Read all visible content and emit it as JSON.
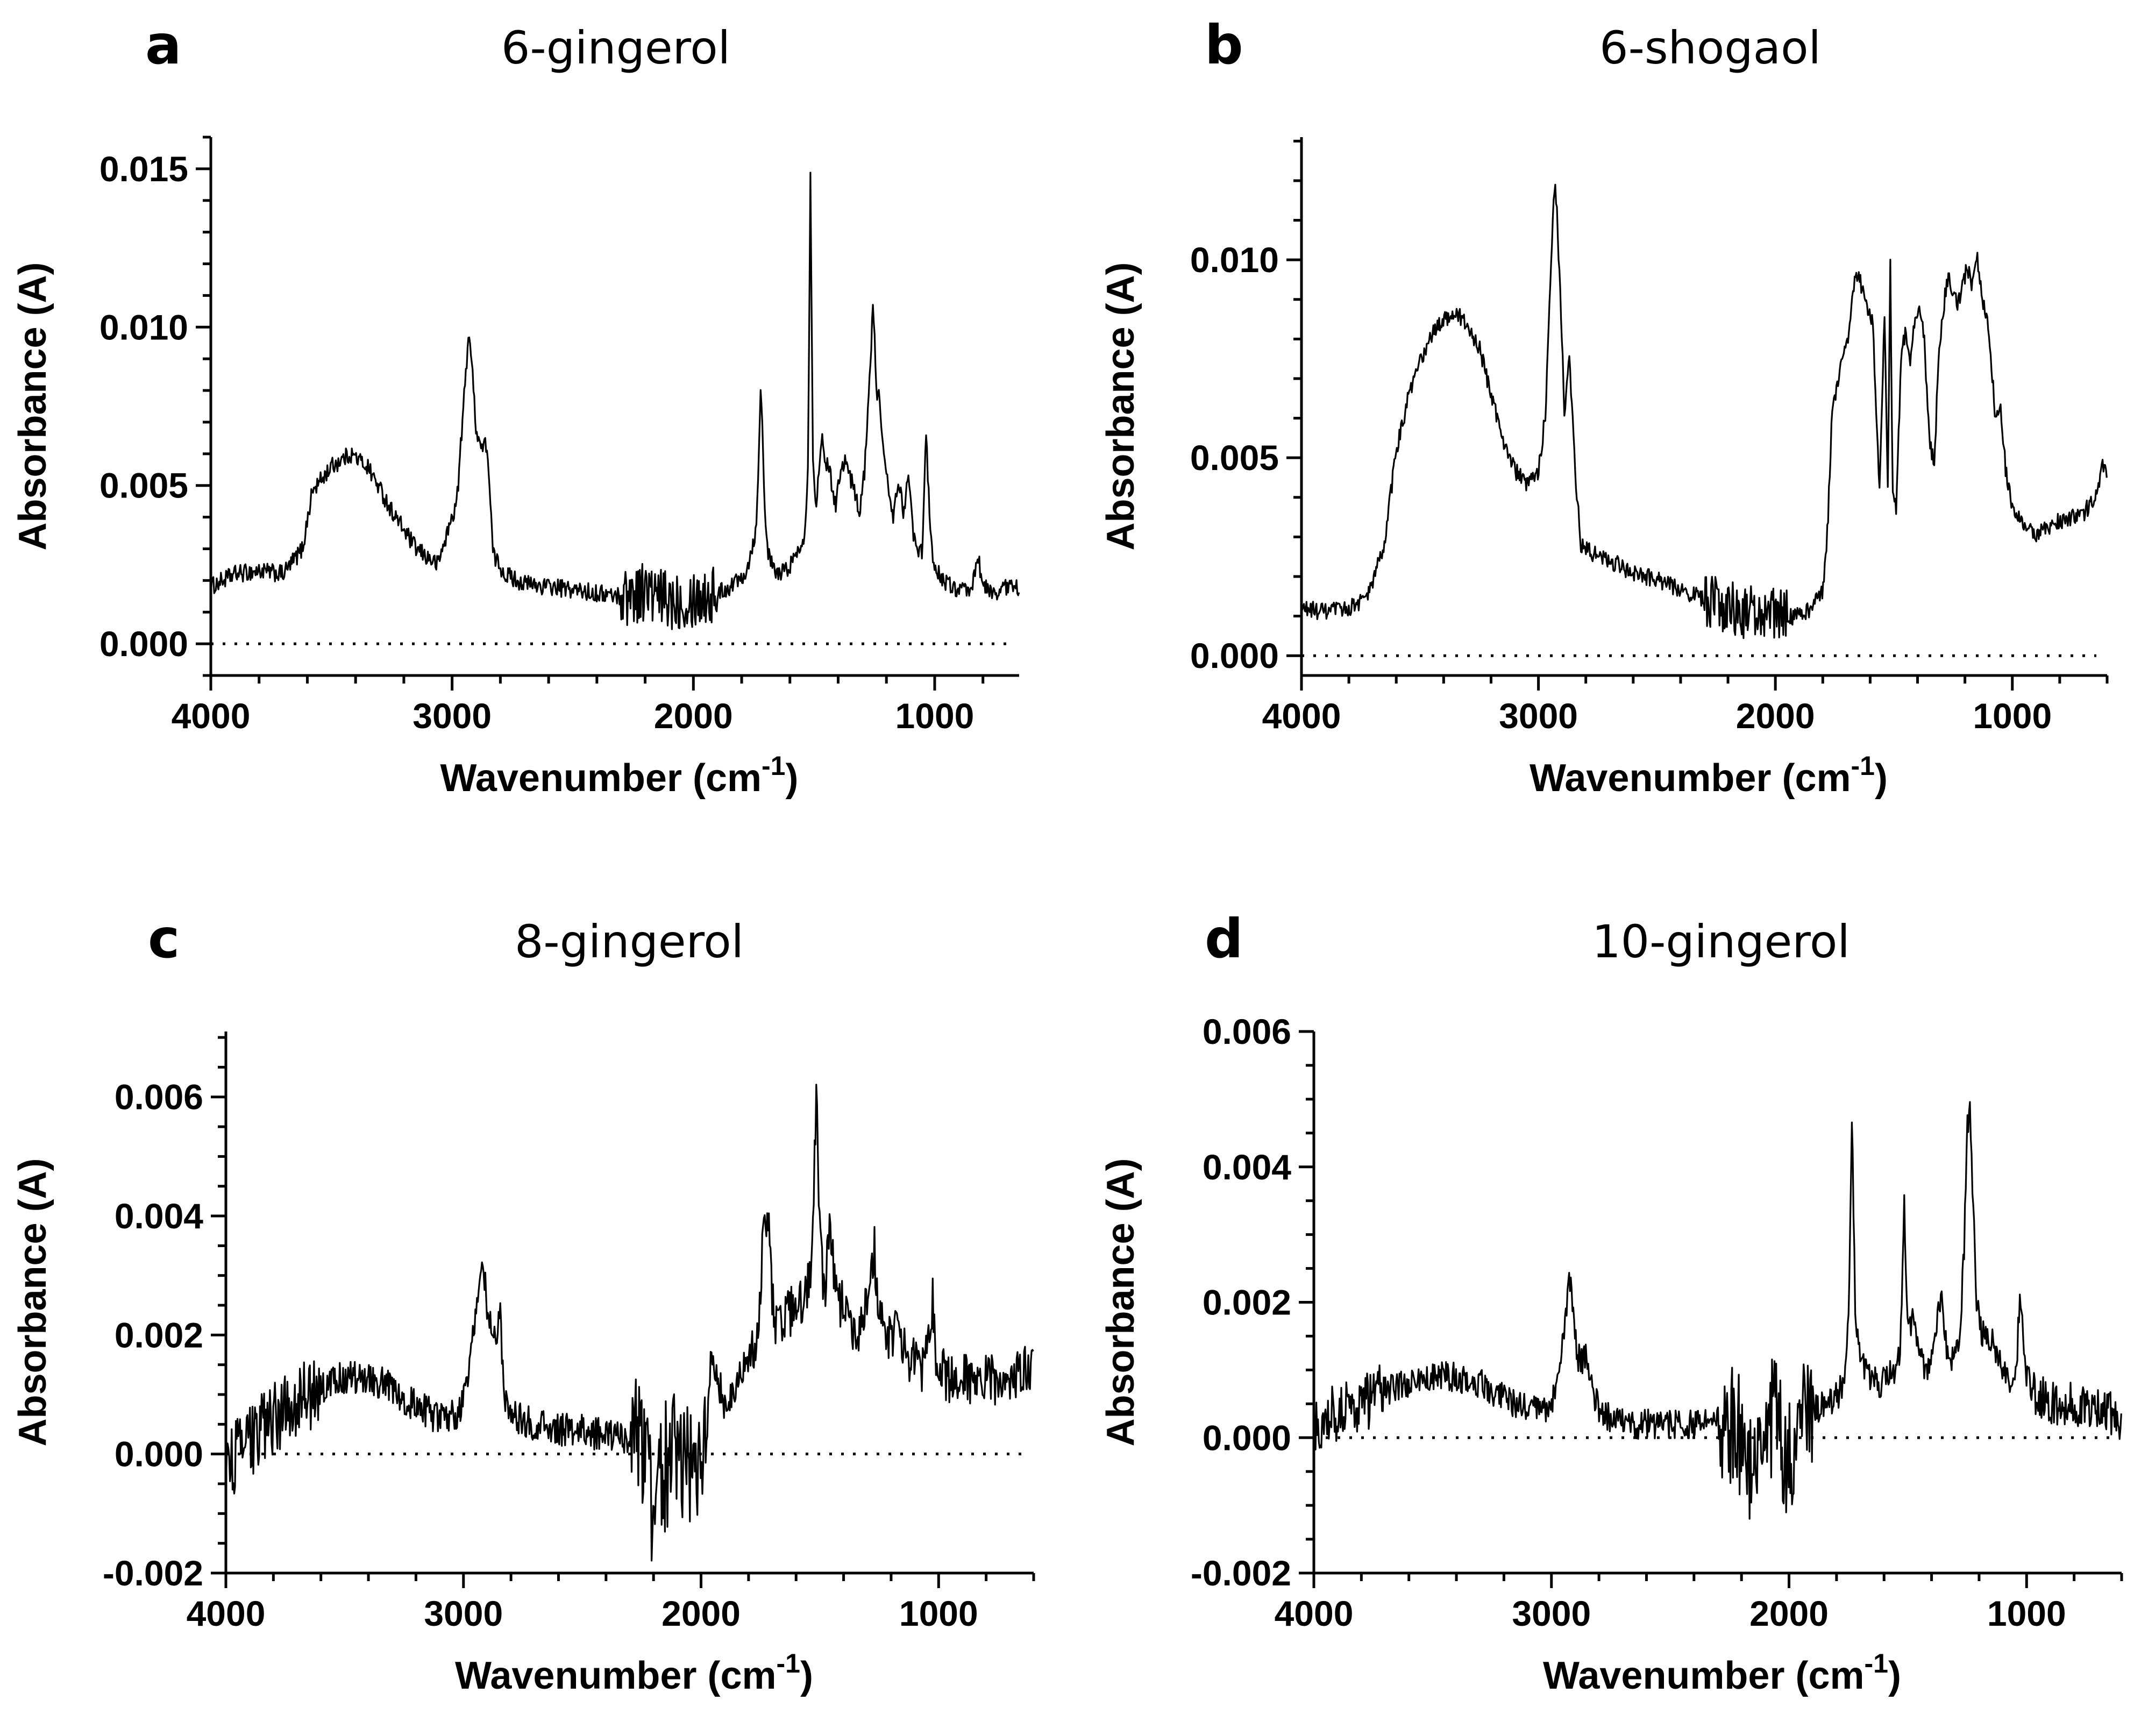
{
  "chart_data": [
    {
      "type": "line",
      "panel_label": "a",
      "title": "6-gingerol",
      "xlabel": "Wavenumber (cm",
      "xlabel_sup": "-1",
      "xlabel_end": ")",
      "ylabel": "Absorbance (A)",
      "xlim": [
        4000,
        650
      ],
      "ylim": [
        -0.001,
        0.016
      ],
      "xticks": [
        4000,
        3000,
        2000,
        1000
      ],
      "xtick_labels": [
        "4000",
        "3000",
        "2000",
        "1000"
      ],
      "yticks": [
        0.0,
        0.005,
        0.01,
        0.015
      ],
      "ytick_labels": [
        "0.000",
        "0.005",
        "0.010",
        "0.015"
      ],
      "y_minor_step": 0.001,
      "x_minor_step": 200,
      "baseline": "dotted line at 0",
      "noise": 0.00028,
      "noise_regions": [
        [
          2300,
          1900,
          3.5
        ]
      ],
      "series": [
        {
          "name": "6-gingerol",
          "x": [
            4000,
            3900,
            3800,
            3700,
            3620,
            3580,
            3500,
            3420,
            3350,
            3250,
            3150,
            3060,
            2980,
            2930,
            2900,
            2880,
            2855,
            2830,
            2780,
            2700,
            2600,
            2500,
            2400,
            2300,
            2250,
            2200,
            2150,
            2100,
            2000,
            1950,
            1900,
            1850,
            1780,
            1740,
            1720,
            1705,
            1690,
            1660,
            1620,
            1590,
            1560,
            1540,
            1525,
            1515,
            1505,
            1490,
            1470,
            1450,
            1430,
            1410,
            1390,
            1370,
            1340,
            1310,
            1290,
            1270,
            1255,
            1240,
            1230,
            1210,
            1190,
            1170,
            1150,
            1130,
            1110,
            1090,
            1070,
            1050,
            1035,
            1020,
            1000,
            950,
            900,
            850,
            820,
            800,
            760,
            700,
            650
          ],
          "y": [
            0.0018,
            0.0022,
            0.0023,
            0.0022,
            0.003,
            0.0048,
            0.0056,
            0.006,
            0.0056,
            0.0042,
            0.003,
            0.0025,
            0.0045,
            0.01,
            0.0068,
            0.0062,
            0.0063,
            0.0028,
            0.0022,
            0.0019,
            0.0018,
            0.0017,
            0.0016,
            0.0015,
            0.0016,
            0.0017,
            0.0014,
            0.0014,
            0.0015,
            0.0015,
            0.0016,
            0.0018,
            0.0023,
            0.0036,
            0.0082,
            0.0045,
            0.0028,
            0.0022,
            0.0023,
            0.0026,
            0.003,
            0.0035,
            0.0055,
            0.015,
            0.006,
            0.0042,
            0.0066,
            0.0058,
            0.0052,
            0.0044,
            0.0056,
            0.0058,
            0.005,
            0.0042,
            0.0055,
            0.0085,
            0.0106,
            0.008,
            0.0078,
            0.0058,
            0.0048,
            0.004,
            0.0052,
            0.0042,
            0.0052,
            0.0036,
            0.0028,
            0.003,
            0.0068,
            0.0036,
            0.0024,
            0.0019,
            0.0017,
            0.0016,
            0.0028,
            0.0018,
            0.0016,
            0.0018,
            0.0018
          ]
        }
      ]
    },
    {
      "type": "line",
      "panel_label": "b",
      "title": "6-shogaol",
      "xlabel": "Wavenumber (cm",
      "xlabel_sup": "-1",
      "xlabel_end": ")",
      "ylabel": "Absorbance (A)",
      "xlim": [
        4000,
        600
      ],
      "ylim": [
        -0.0005,
        0.0131
      ],
      "xticks": [
        4000,
        3000,
        2000,
        1000
      ],
      "xtick_labels": [
        "4000",
        "3000",
        "2000",
        "1000"
      ],
      "yticks": [
        0.0,
        0.005,
        0.01
      ],
      "ytick_labels": [
        "0.000",
        "0.005",
        "0.010"
      ],
      "y_minor_step": 0.001,
      "x_minor_step": 200,
      "baseline": "dotted line at 0",
      "noise": 0.00022,
      "noise_regions": [
        [
          2300,
          1950,
          3.2
        ]
      ],
      "series": [
        {
          "name": "6-shogaol",
          "x": [
            4000,
            3900,
            3800,
            3720,
            3650,
            3600,
            3550,
            3500,
            3450,
            3400,
            3350,
            3300,
            3250,
            3200,
            3150,
            3100,
            3050,
            3000,
            2970,
            2950,
            2930,
            2910,
            2890,
            2870,
            2855,
            2840,
            2820,
            2780,
            2700,
            2600,
            2500,
            2400,
            2300,
            2200,
            2100,
            2000,
            1900,
            1850,
            1800,
            1780,
            1760,
            1720,
            1690,
            1670,
            1650,
            1630,
            1610,
            1590,
            1560,
            1540,
            1525,
            1515,
            1505,
            1490,
            1470,
            1450,
            1430,
            1410,
            1390,
            1370,
            1350,
            1330,
            1310,
            1290,
            1270,
            1250,
            1230,
            1210,
            1190,
            1170,
            1150,
            1130,
            1110,
            1090,
            1070,
            1050,
            1030,
            1000,
            950,
            900,
            850,
            800,
            750,
            700,
            650,
            620,
            600
          ],
          "y": [
            0.0012,
            0.0011,
            0.0012,
            0.0015,
            0.0028,
            0.0052,
            0.0065,
            0.0074,
            0.0081,
            0.0085,
            0.0087,
            0.0083,
            0.0078,
            0.0066,
            0.0055,
            0.0047,
            0.0043,
            0.0046,
            0.0062,
            0.0095,
            0.0122,
            0.0095,
            0.0062,
            0.0075,
            0.0058,
            0.0042,
            0.0028,
            0.0026,
            0.0024,
            0.0021,
            0.0019,
            0.0017,
            0.0014,
            0.0012,
            0.0011,
            0.001,
            0.001,
            0.0012,
            0.0016,
            0.0032,
            0.0062,
            0.0075,
            0.0082,
            0.0094,
            0.0096,
            0.0092,
            0.0088,
            0.0085,
            0.0042,
            0.0086,
            0.0042,
            0.0099,
            0.0042,
            0.0036,
            0.0075,
            0.0082,
            0.0074,
            0.0085,
            0.0089,
            0.0078,
            0.0055,
            0.0048,
            0.0076,
            0.0088,
            0.0097,
            0.0092,
            0.0088,
            0.0094,
            0.0098,
            0.0094,
            0.0101,
            0.0091,
            0.0086,
            0.0075,
            0.0058,
            0.0064,
            0.0048,
            0.0038,
            0.0033,
            0.0031,
            0.0032,
            0.0034,
            0.0035,
            0.0036,
            0.004,
            0.0048,
            0.0046
          ]
        }
      ]
    },
    {
      "type": "line",
      "panel_label": "c",
      "title": "8-gingerol",
      "xlabel": "Wavenumber (cm",
      "xlabel_sup": "-1",
      "xlabel_end": ")",
      "ylabel": "Absorbance (A)",
      "xlim": [
        4000,
        600
      ],
      "ylim": [
        -0.002,
        0.0071
      ],
      "xticks": [
        4000,
        3000,
        2000,
        1000
      ],
      "xtick_labels": [
        "4000",
        "3000",
        "2000",
        "1000"
      ],
      "yticks": [
        -0.002,
        0.0,
        0.002,
        0.004,
        0.006
      ],
      "ytick_labels": [
        "-0.002",
        "0.000",
        "0.002",
        "0.004",
        "0.006"
      ],
      "y_minor_step": 0.0005,
      "x_minor_step": 200,
      "baseline": "dotted line at 0",
      "noise": 0.00028,
      "noise_regions": [
        [
          4000,
          3600,
          2.2
        ],
        [
          2300,
          1950,
          4.0
        ],
        [
          1800,
          600,
          1.5
        ]
      ],
      "series": [
        {
          "name": "8-gingerol",
          "x": [
            4000,
            3900,
            3800,
            3700,
            3600,
            3500,
            3400,
            3300,
            3200,
            3100,
            3020,
            2970,
            2940,
            2920,
            2900,
            2880,
            2860,
            2845,
            2830,
            2780,
            2700,
            2600,
            2500,
            2400,
            2300,
            2250,
            2200,
            2150,
            2100,
            2050,
            2000,
            1980,
            1950,
            1900,
            1850,
            1800,
            1760,
            1740,
            1720,
            1705,
            1690,
            1660,
            1620,
            1580,
            1550,
            1530,
            1515,
            1500,
            1480,
            1460,
            1440,
            1420,
            1400,
            1380,
            1350,
            1320,
            1290,
            1270,
            1255,
            1240,
            1220,
            1200,
            1180,
            1160,
            1140,
            1120,
            1100,
            1080,
            1060,
            1040,
            1025,
            1010,
            990,
            950,
            900,
            850,
            800,
            750,
            700,
            650,
            600
          ],
          "y": [
            -0.0002,
            0.0002,
            0.0006,
            0.0009,
            0.0011,
            0.0013,
            0.0013,
            0.0011,
            0.0008,
            0.0006,
            0.0007,
            0.0015,
            0.0028,
            0.0034,
            0.0024,
            0.002,
            0.0019,
            0.0023,
            0.001,
            0.0006,
            0.0005,
            0.0004,
            0.0004,
            0.0003,
            0.0003,
            0.0,
            -0.0008,
            -0.0002,
            0.0002,
            -0.0002,
            -0.0006,
            0.0,
            0.0016,
            0.0008,
            0.0012,
            0.0016,
            0.002,
            0.0035,
            0.004,
            0.003,
            0.0022,
            0.0022,
            0.0024,
            0.0026,
            0.0028,
            0.0034,
            0.0062,
            0.0035,
            0.0026,
            0.0038,
            0.003,
            0.0025,
            0.0026,
            0.0022,
            0.002,
            0.0022,
            0.0028,
            0.0034,
            0.0026,
            0.0022,
            0.002,
            0.0019,
            0.0021,
            0.0018,
            0.0017,
            0.0016,
            0.0015,
            0.0014,
            0.0015,
            0.0022,
            0.0026,
            0.0016,
            0.0014,
            0.0012,
            0.0013,
            0.0012,
            0.0013,
            0.0012,
            0.0013,
            0.0014,
            0.0014
          ]
        }
      ]
    },
    {
      "type": "line",
      "panel_label": "d",
      "title": "10-gingerol",
      "xlabel": "Wavenumber (cm",
      "xlabel_sup": "-1",
      "xlabel_end": ")",
      "ylabel": "Absorbance (A)",
      "xlim": [
        4000,
        600
      ],
      "ylim": [
        -0.002,
        0.006
      ],
      "xticks": [
        4000,
        3000,
        2000,
        1000
      ],
      "xtick_labels": [
        "4000",
        "3000",
        "2000",
        "1000"
      ],
      "yticks": [
        -0.002,
        0.0,
        0.002,
        0.004,
        0.006
      ],
      "ytick_labels": [
        "-0.002",
        "0.000",
        "0.002",
        "0.004",
        "0.006"
      ],
      "y_minor_step": 0.0005,
      "x_minor_step": 200,
      "baseline": "dotted line at 0",
      "noise": 0.00022,
      "noise_regions": [
        [
          4000,
          3700,
          2.0
        ],
        [
          2300,
          1900,
          4.2
        ],
        [
          1000,
          600,
          1.6
        ]
      ],
      "series": [
        {
          "name": "10-gingerol",
          "x": [
            4000,
            3900,
            3800,
            3700,
            3600,
            3500,
            3400,
            3300,
            3200,
            3100,
            3020,
            2970,
            2940,
            2925,
            2910,
            2890,
            2870,
            2855,
            2840,
            2800,
            2700,
            2600,
            2500,
            2400,
            2300,
            2250,
            2200,
            2150,
            2100,
            2050,
            2000,
            1950,
            1900,
            1850,
            1800,
            1770,
            1750,
            1735,
            1720,
            1700,
            1660,
            1620,
            1580,
            1550,
            1530,
            1515,
            1500,
            1480,
            1460,
            1440,
            1420,
            1400,
            1380,
            1360,
            1340,
            1320,
            1300,
            1280,
            1265,
            1250,
            1240,
            1225,
            1210,
            1190,
            1170,
            1150,
            1120,
            1090,
            1060,
            1040,
            1030,
            1020,
            1000,
            950,
            900,
            850,
            800,
            750,
            700,
            650,
            600
          ],
          "y": [
            0.0002,
            0.0004,
            0.0005,
            0.0007,
            0.0008,
            0.0009,
            0.0009,
            0.0008,
            0.0006,
            0.0004,
            0.0004,
            0.0008,
            0.0018,
            0.0025,
            0.0018,
            0.0012,
            0.0011,
            0.0012,
            0.0008,
            0.0004,
            0.0002,
            0.0002,
            0.0002,
            0.0002,
            0.0002,
            0.0002,
            0.0,
            -0.0008,
            0.0003,
            0.0002,
            -0.0003,
            0.0004,
            0.0004,
            0.0005,
            0.0006,
            0.0008,
            0.0016,
            0.0048,
            0.0016,
            0.0012,
            0.0009,
            0.0008,
            0.0009,
            0.001,
            0.0014,
            0.0034,
            0.0016,
            0.0017,
            0.0015,
            0.0011,
            0.0009,
            0.0012,
            0.0016,
            0.0022,
            0.0014,
            0.0011,
            0.0012,
            0.0016,
            0.0026,
            0.0045,
            0.005,
            0.0035,
            0.002,
            0.0016,
            0.0014,
            0.0015,
            0.0012,
            0.001,
            0.0008,
            0.0012,
            0.0021,
            0.0018,
            0.0008,
            0.0006,
            0.0005,
            0.0005,
            0.0005,
            0.0004,
            0.0004,
            0.0004,
            0.0003
          ]
        }
      ]
    }
  ]
}
